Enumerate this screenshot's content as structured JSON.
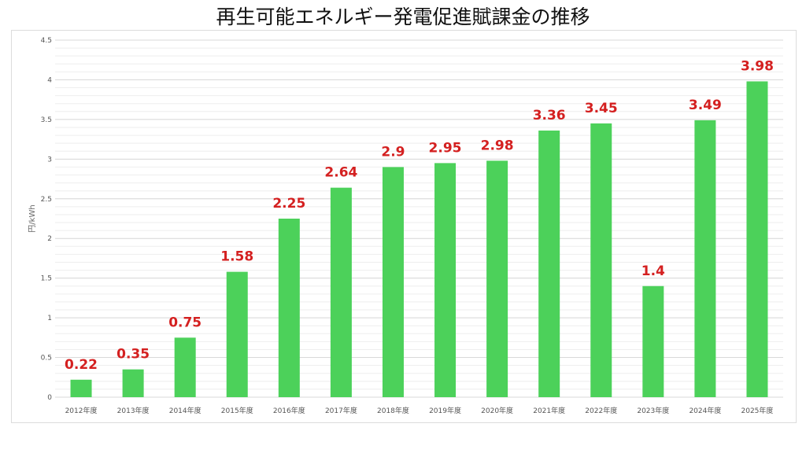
{
  "title": "再生可能エネルギー発電促進賦課金の推移",
  "colors": {
    "bar": "#4cd15a",
    "label": "#d42020",
    "grid": "#d9d9d9",
    "minor_grid": "#eeeeee"
  },
  "chart_data": {
    "type": "bar",
    "title": "再生可能エネルギー発電促進賦課金の推移",
    "xlabel": "",
    "ylabel": "円/kWh",
    "ylim": [
      0,
      4.5
    ],
    "yticks": [
      "0",
      "0.5",
      "1",
      "1.5",
      "2",
      "2.5",
      "3",
      "3.5",
      "4",
      "4.5"
    ],
    "grid": true,
    "legend": "none",
    "categories": [
      "2012年度",
      "2013年度",
      "2014年度",
      "2015年度",
      "2016年度",
      "2017年度",
      "2018年度",
      "2019年度",
      "2020年度",
      "2021年度",
      "2022年度",
      "2023年度",
      "2024年度",
      "2025年度"
    ],
    "values": [
      0.22,
      0.35,
      0.75,
      1.58,
      2.25,
      2.64,
      2.9,
      2.95,
      2.98,
      3.36,
      3.45,
      1.4,
      3.49,
      3.98
    ],
    "data_labels": [
      "0.22",
      "0.35",
      "0.75",
      "1.58",
      "2.25",
      "2.64",
      "2.9",
      "2.95",
      "2.98",
      "3.36",
      "3.45",
      "1.4",
      "3.49",
      "3.98"
    ]
  }
}
